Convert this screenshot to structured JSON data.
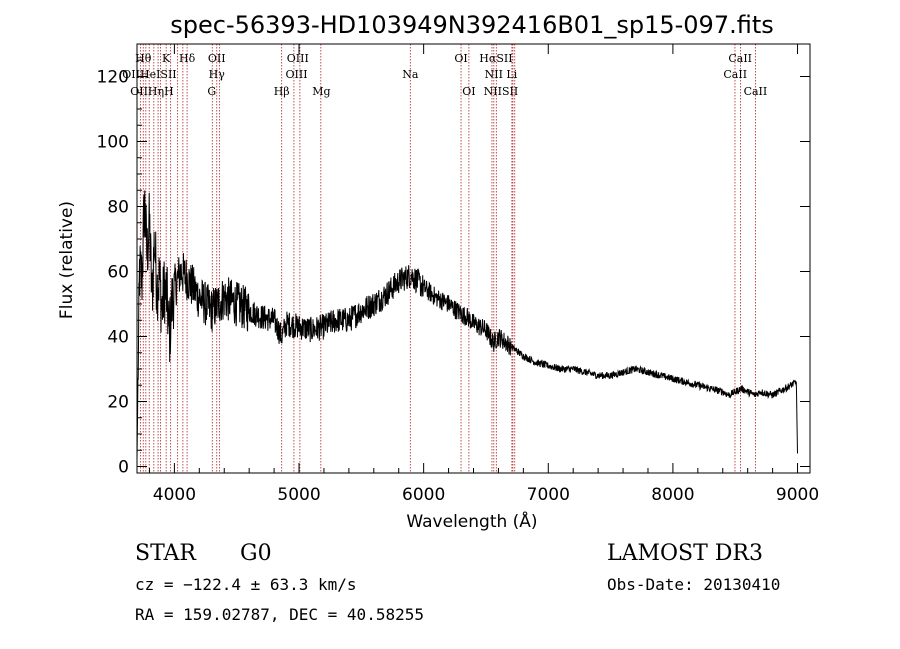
{
  "chart_data": {
    "type": "line",
    "title": "spec-56393-HD103949N392416B01_sp15-097.fits",
    "xlabel": "Wavelength (Å)",
    "ylabel": "Flux (relative)",
    "xlim": [
      3700,
      9100
    ],
    "ylim": [
      -2,
      130
    ],
    "x_ticks": [
      4000,
      5000,
      6000,
      7000,
      8000,
      9000
    ],
    "y_ticks": [
      0,
      20,
      40,
      60,
      80,
      100,
      120
    ],
    "series": [
      {
        "name": "flux",
        "x": [
          3700,
          3720,
          3740,
          3760,
          3780,
          3800,
          3820,
          3840,
          3860,
          3880,
          3900,
          3920,
          3940,
          3960,
          3980,
          4000,
          4050,
          4100,
          4150,
          4200,
          4250,
          4300,
          4350,
          4400,
          4500,
          4600,
          4700,
          4800,
          4860,
          4900,
          5000,
          5100,
          5200,
          5300,
          5400,
          5500,
          5600,
          5700,
          5800,
          5850,
          5900,
          5950,
          6000,
          6100,
          6200,
          6300,
          6350,
          6400,
          6500,
          6560,
          6600,
          6700,
          6800,
          6900,
          7000,
          7100,
          7200,
          7300,
          7400,
          7500,
          7600,
          7700,
          7800,
          7900,
          8000,
          8100,
          8200,
          8300,
          8400,
          8450,
          8500,
          8550,
          8600,
          8660,
          8700,
          8800,
          8900,
          8990,
          9000
        ],
        "y": [
          2,
          60,
          58,
          82,
          65,
          75,
          52,
          70,
          55,
          58,
          48,
          55,
          52,
          40,
          50,
          55,
          60,
          58,
          55,
          52,
          50,
          48,
          50,
          52,
          50,
          48,
          46,
          45,
          40,
          44,
          43,
          42,
          43,
          45,
          45,
          48,
          50,
          53,
          57,
          58,
          59,
          57,
          55,
          52,
          50,
          47,
          46,
          44,
          42,
          38,
          40,
          37,
          34,
          32,
          31,
          30,
          30,
          29,
          28,
          28,
          29,
          30,
          29,
          28,
          27,
          26,
          25,
          24,
          23,
          22,
          23,
          24,
          23,
          22,
          23,
          22,
          24,
          26,
          4
        ]
      }
    ],
    "line_markers": {
      "row1": [
        {
          "label": "Hθ",
          "x": 3750
        },
        {
          "label": "K",
          "x": 3934
        },
        {
          "label": "Hδ",
          "x": 4102
        },
        {
          "label": "OII",
          "x": 4340
        },
        {
          "label": "OIII",
          "x": 4990
        },
        {
          "label": "OI",
          "x": 6300
        },
        {
          "label": "HαSII",
          "x": 6580
        },
        {
          "label": "CaII",
          "x": 8540
        }
      ],
      "row2": [
        {
          "label": "OIIHeISII",
          "x": 3800
        },
        {
          "label": "Hγ",
          "x": 4340
        },
        {
          "label": "OIII",
          "x": 4980
        },
        {
          "label": "Na",
          "x": 5893
        },
        {
          "label": "NII Li",
          "x": 6620
        },
        {
          "label": "CaII",
          "x": 8500
        }
      ],
      "row3": [
        {
          "label": "OIIHηH",
          "x": 3820
        },
        {
          "label": "G",
          "x": 4300
        },
        {
          "label": "Hβ",
          "x": 4861
        },
        {
          "label": "Mg",
          "x": 5180
        },
        {
          "label": "OI",
          "x": 6363
        },
        {
          "label": "NIISII",
          "x": 6620
        },
        {
          "label": "CaII",
          "x": 8662
        }
      ],
      "lines_x": [
        3727,
        3750,
        3771,
        3798,
        3835,
        3869,
        3889,
        3934,
        3970,
        4026,
        4068,
        4102,
        4304,
        4340,
        4363,
        4861,
        4959,
        5007,
        5175,
        5893,
        6300,
        6363,
        6548,
        6563,
        6583,
        6708,
        6716,
        6731,
        8498,
        8542,
        8662
      ]
    }
  },
  "footer": {
    "object_type": "STAR",
    "subclass": "G0",
    "survey": "LAMOST DR3",
    "cz": "cz = −122.4 ± 63.3 km/s",
    "obs_date": "Obs-Date: 20130410",
    "coords": "RA = 159.02787, DEC =  40.58255"
  },
  "colors": {
    "line": "#000000",
    "markers": "#b22222"
  }
}
